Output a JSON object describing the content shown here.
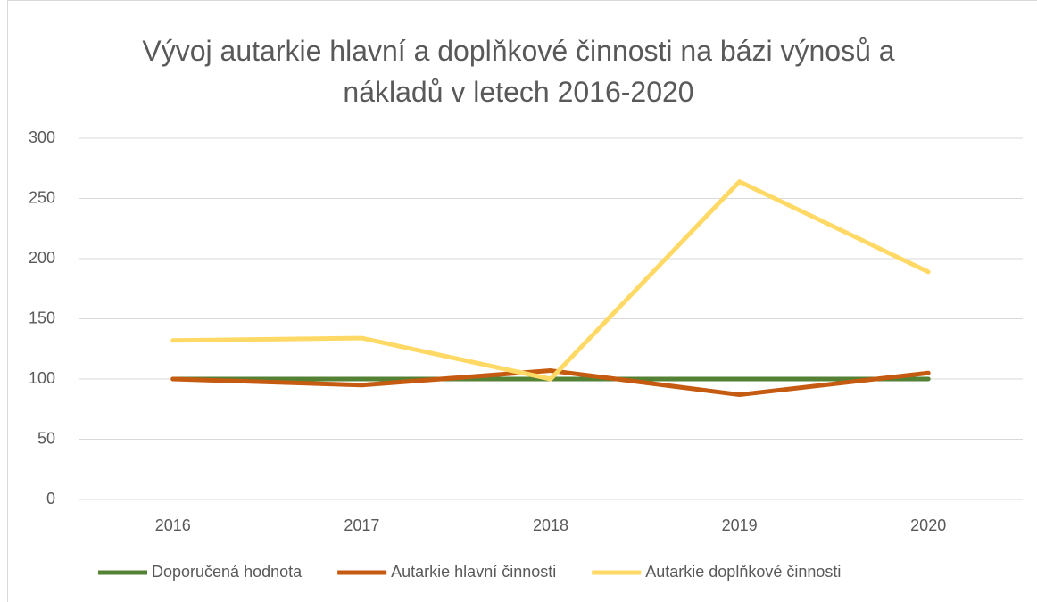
{
  "chart_data": {
    "type": "line",
    "title": "Vývoj autarkie hlavní a doplňkové činnosti na bázi výnosů a nákladů v letech 2016-2020",
    "categories": [
      "2016",
      "2017",
      "2018",
      "2019",
      "2020"
    ],
    "series": [
      {
        "name": "Doporučená hodnota",
        "color": "#548235",
        "values": [
          100,
          100,
          100,
          100,
          100
        ]
      },
      {
        "name": "Autarkie hlavní činnosti",
        "color": "#c55a11",
        "values": [
          100,
          95,
          107,
          87,
          105
        ]
      },
      {
        "name": "Autarkie doplňkové činnosti",
        "color": "#ffd966",
        "values": [
          132,
          134,
          100,
          264,
          189
        ]
      }
    ],
    "ylim": [
      0,
      300
    ],
    "yticks": [
      0,
      50,
      100,
      150,
      200,
      250,
      300
    ],
    "grid": true,
    "legend": "bottom"
  }
}
